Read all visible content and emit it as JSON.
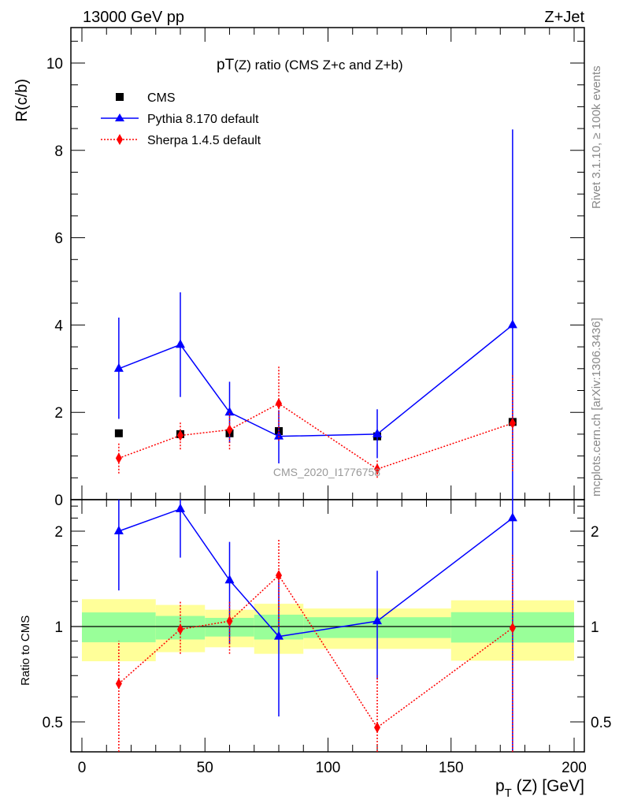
{
  "chart_data": {
    "type": "scatter",
    "header_left": "13000 GeV pp",
    "header_right": "Z+Jet",
    "title": "pT(Z) ratio (CMS  Z+c and Z+b)",
    "title_main": "pT",
    "title_sub": "(Z)",
    "title_rest": " ratio (CMS  Z+c and Z+b)",
    "ylabel": "R(c/b)",
    "ratio_ylabel": "Ratio to CMS",
    "xlabel_p": "p",
    "xlabel_sub": "T",
    "xlabel_rest": " (Z) [GeV]",
    "side_text_top": "Rivet 3.1.10, ≥ 100k events",
    "side_text_bottom": "mcplots.cern.ch [arXiv:1306.3436]",
    "watermark": "CMS_2020_I1776758",
    "xlim": [
      0,
      200
    ],
    "ylim": [
      0,
      10.8
    ],
    "ratio_ylim": [
      0.4,
      2.5
    ],
    "x_ticks": [
      "0",
      "50",
      "100",
      "150",
      "200"
    ],
    "y_ticks": [
      "0",
      "2",
      "4",
      "6",
      "8",
      "10"
    ],
    "ratio_ticks": [
      "0.5",
      "1",
      "2"
    ],
    "bins": [
      [
        0,
        30
      ],
      [
        30,
        50
      ],
      [
        50,
        70
      ],
      [
        70,
        90
      ],
      [
        90,
        150
      ],
      [
        150,
        200
      ]
    ],
    "x": [
      15,
      40,
      60,
      80,
      120,
      175
    ],
    "series": [
      {
        "name": "CMS",
        "color": "#000000",
        "values": [
          1.52,
          1.5,
          1.52,
          1.57,
          1.45,
          1.78
        ]
      },
      {
        "name": "Pythia 8.170 default",
        "color": "#0000ff",
        "values": [
          3.0,
          3.55,
          2.0,
          1.45,
          1.5,
          4.0
        ],
        "err_low": [
          1.85,
          2.35,
          1.3,
          0.83,
          0.95,
          0.0
        ],
        "err_high": [
          4.17,
          4.75,
          2.7,
          2.05,
          2.07,
          8.48
        ],
        "ratio": [
          2.0,
          2.35,
          1.4,
          0.93,
          1.04,
          2.2
        ],
        "ratio_low": [
          1.3,
          1.65,
          0.88,
          0.52,
          0.68,
          0.4
        ],
        "ratio_high": [
          2.6,
          2.6,
          1.85,
          1.4,
          1.5,
          2.6
        ]
      },
      {
        "name": "Sherpa 1.4.5 default",
        "color": "#ff0000",
        "values": [
          0.95,
          1.47,
          1.6,
          2.2,
          0.7,
          1.75
        ],
        "err_low": [
          0.6,
          1.15,
          1.15,
          1.35,
          0.5,
          0.65
        ],
        "err_high": [
          1.3,
          1.78,
          2.0,
          3.05,
          0.9,
          2.85
        ],
        "ratio": [
          0.66,
          0.98,
          1.04,
          1.45,
          0.48,
          0.99
        ],
        "ratio_low": [
          0.4,
          0.82,
          0.82,
          1.0,
          0.4,
          0.4
        ],
        "ratio_high": [
          0.9,
          1.2,
          1.2,
          1.9,
          0.7,
          1.7
        ]
      }
    ],
    "band_stat": {
      "color": "#99ff99",
      "low": [
        0.892,
        0.91,
        0.93,
        0.91,
        0.92,
        0.89
      ],
      "high": [
        1.108,
        1.08,
        1.065,
        1.09,
        1.07,
        1.11
      ]
    },
    "band_total": {
      "color": "#ffff99",
      "low": [
        0.777,
        0.83,
        0.86,
        0.82,
        0.85,
        0.78
      ],
      "high": [
        1.22,
        1.17,
        1.13,
        1.18,
        1.14,
        1.21
      ]
    },
    "legend_position": "top-left"
  }
}
